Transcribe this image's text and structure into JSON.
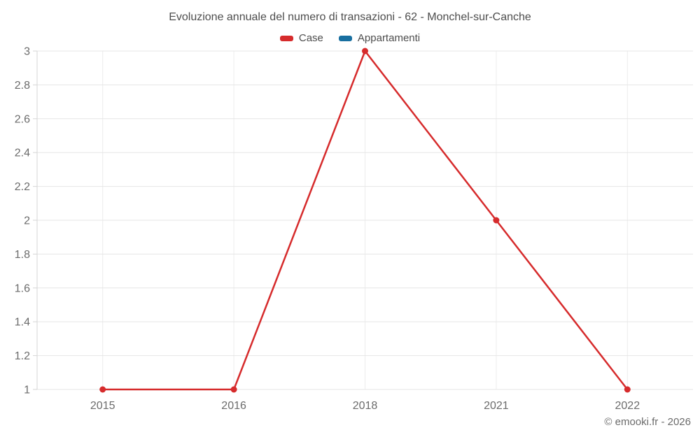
{
  "page": {
    "footer": "© emooki.fr - 2026"
  },
  "chart_data": {
    "type": "line",
    "title": "Evoluzione annuale del numero di transazioni - 62 - Monchel-sur-Canche",
    "categories": [
      "2015",
      "2016",
      "2018",
      "2021",
      "2022"
    ],
    "series": [
      {
        "name": "Case",
        "color": "#d62b2c",
        "values": [
          1,
          1,
          3,
          2,
          1
        ],
        "marker": "circle"
      },
      {
        "name": "Appartamenti",
        "color": "#186fa0",
        "values": [],
        "marker": "circle"
      }
    ],
    "ylim": [
      1,
      3
    ],
    "ytick_step": 0.2,
    "ytick_labels": [
      "1",
      "1.2",
      "1.4",
      "1.6",
      "1.8",
      "2",
      "2.2",
      "2.4",
      "2.6",
      "2.8",
      "3"
    ],
    "xlabel": "",
    "ylabel": "",
    "grid": true,
    "legend_position": "top"
  },
  "colors": {
    "series_case": "#d62b2c",
    "series_appartamenti": "#186fa0",
    "gridline_horizontal": "#e6e6e6",
    "gridline_vertical": "#ececec",
    "axis": "#d6d6d6",
    "title_text": "#4d4d4d",
    "tick_text": "#6b6b6b"
  }
}
